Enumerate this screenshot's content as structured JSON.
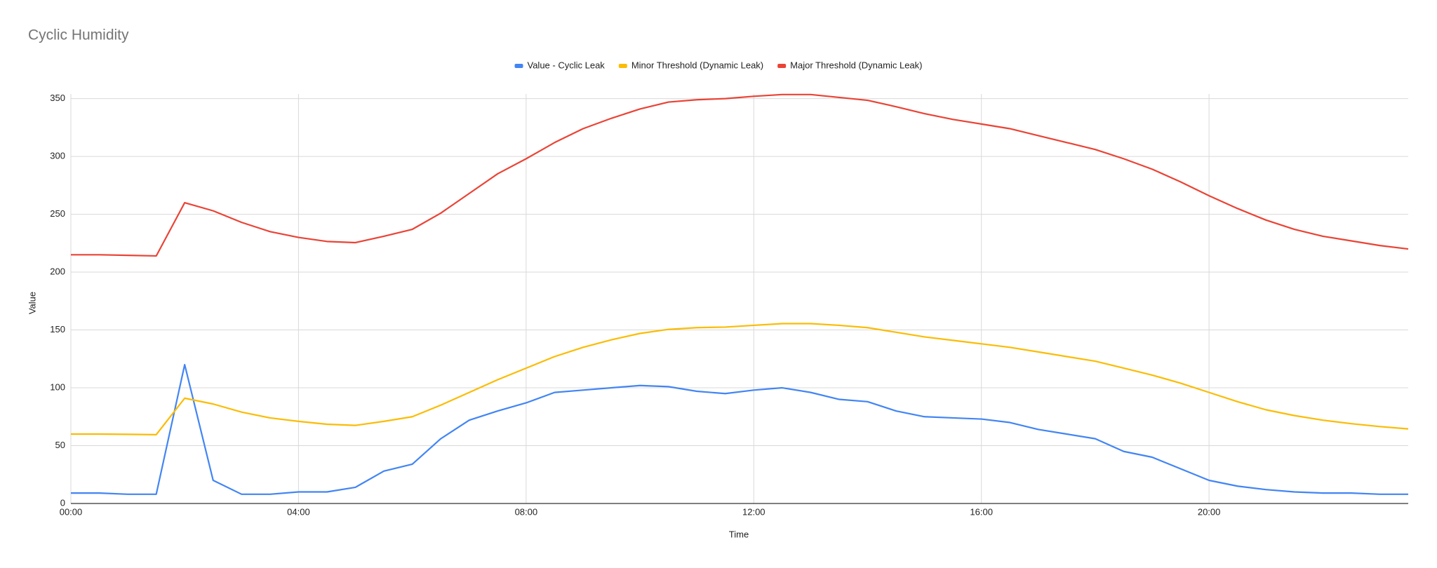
{
  "chart_data": {
    "type": "line",
    "title": "Cyclic Humidity",
    "x_label": "Time",
    "y_label": "Value",
    "x": [
      0,
      0.5,
      1,
      1.5,
      2,
      2.5,
      3,
      3.5,
      4,
      4.5,
      5,
      5.5,
      6,
      6.5,
      7,
      7.5,
      8,
      8.5,
      9,
      9.5,
      10,
      10.5,
      11,
      11.5,
      12,
      12.5,
      13,
      13.5,
      14,
      14.5,
      15,
      15.5,
      16,
      16.5,
      17,
      17.5,
      18,
      18.5,
      19,
      19.5,
      20,
      20.5,
      21,
      21.5,
      22,
      22.5,
      23,
      23.5
    ],
    "series": [
      {
        "name": "Value - Cyclic Leak",
        "color": "#4285f4",
        "values": [
          9,
          9,
          8,
          8,
          120,
          20,
          8,
          8,
          10,
          10,
          14,
          28,
          34,
          56,
          72,
          80,
          87,
          96,
          98,
          100,
          102,
          101,
          97,
          95,
          98,
          100,
          96,
          90,
          88,
          80,
          75,
          74,
          73,
          70,
          64,
          60,
          56,
          45,
          40,
          30,
          20,
          15,
          12,
          10,
          9,
          9,
          8,
          8
        ]
      },
      {
        "name": "Minor Threshold (Dynamic Leak)",
        "color": "#fbbc04",
        "values": [
          60,
          60,
          59.8,
          59.5,
          91,
          86,
          79,
          74,
          71,
          68.5,
          67.5,
          71,
          75,
          85,
          96,
          107,
          117,
          127,
          135,
          141.5,
          147,
          150.5,
          152,
          152.5,
          154,
          155.5,
          155.5,
          154,
          152,
          148,
          144,
          141,
          138,
          135,
          131,
          127,
          123,
          117,
          111,
          104,
          96,
          88,
          81,
          76,
          72,
          69,
          66.5,
          64.5
        ]
      },
      {
        "name": "Major Threshold (Dynamic Leak)",
        "color": "#ea4335",
        "values": [
          215,
          215,
          214.5,
          214,
          260,
          253,
          243,
          235,
          230,
          226.5,
          225.5,
          231,
          237,
          251,
          268,
          285,
          298,
          312,
          324,
          333,
          341,
          347,
          349,
          350,
          352,
          353.5,
          353.5,
          351,
          348.5,
          343,
          337,
          332,
          328,
          324,
          318,
          312,
          306,
          298,
          289,
          278,
          266,
          255,
          245,
          237,
          231,
          227,
          223,
          220
        ]
      }
    ],
    "xlim": [
      0,
      23.5
    ],
    "xticks": [
      {
        "value": 0,
        "label": "00:00"
      },
      {
        "value": 4,
        "label": "04:00"
      },
      {
        "value": 8,
        "label": "08:00"
      },
      {
        "value": 12,
        "label": "12:00"
      },
      {
        "value": 16,
        "label": "16:00"
      },
      {
        "value": 20,
        "label": "20:00"
      }
    ],
    "ylim": [
      0,
      354
    ],
    "yticks": [
      0,
      50,
      100,
      150,
      200,
      250,
      300,
      350
    ],
    "grid": true,
    "legend": "top"
  }
}
